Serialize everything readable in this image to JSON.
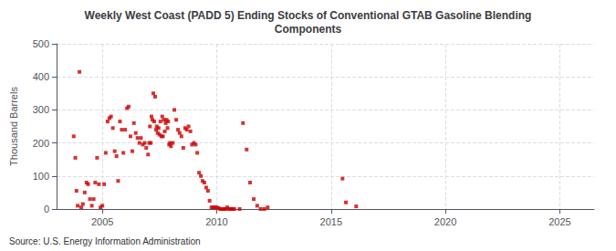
{
  "chart_data": {
    "type": "scatter",
    "title": "Weekly West Coast (PADD 5) Ending Stocks of Conventional GTAB Gasoline Blending\nComponents",
    "ylabel": "Thousand Barrels",
    "source": "Source: U.S. Energy Information Administration",
    "color": "#cc0000",
    "marker": "square",
    "grid": true,
    "xlim": [
      2003.0,
      2026.5
    ],
    "ylim": [
      0,
      500
    ],
    "xticks": [
      2005,
      2010,
      2015,
      2020,
      2025
    ],
    "yticks": [
      0,
      100,
      200,
      300,
      400,
      500
    ],
    "x": [
      2003.75,
      2003.82,
      2003.87,
      2003.92,
      2004.0,
      2004.08,
      2004.15,
      2004.23,
      2004.31,
      2004.38,
      2004.46,
      2004.54,
      2004.62,
      2004.69,
      2004.77,
      2004.85,
      2004.92,
      2005.0,
      2005.08,
      2005.15,
      2005.23,
      2005.31,
      2005.38,
      2005.46,
      2005.54,
      2005.62,
      2005.69,
      2005.77,
      2005.85,
      2005.92,
      2006.0,
      2006.08,
      2006.15,
      2006.23,
      2006.31,
      2006.38,
      2006.46,
      2006.54,
      2006.62,
      2006.69,
      2006.77,
      2006.85,
      2006.92,
      2007.0,
      2007.08,
      2007.15,
      2007.23,
      2007.31,
      2007.38,
      2007.46,
      2007.54,
      2007.62,
      2007.69,
      2007.77,
      2007.85,
      2007.92,
      2007.05,
      2007.12,
      2007.19,
      2007.27,
      2007.35,
      2007.42,
      2007.5,
      2007.58,
      2007.65,
      2007.73,
      2007.81,
      2007.88,
      2007.96,
      2008.0,
      2008.08,
      2008.15,
      2008.23,
      2008.31,
      2008.38,
      2008.46,
      2008.54,
      2008.62,
      2008.69,
      2008.77,
      2008.85,
      2008.92,
      2009.0,
      2009.08,
      2009.15,
      2009.23,
      2009.31,
      2009.38,
      2009.46,
      2009.54,
      2009.62,
      2009.69,
      2009.77,
      2009.85,
      2009.92,
      2010.0,
      2010.08,
      2010.15,
      2010.23,
      2010.31,
      2010.38,
      2010.46,
      2010.54,
      2010.62,
      2010.69,
      2010.77,
      2011.0,
      2011.15,
      2011.31,
      2011.46,
      2011.62,
      2011.77,
      2011.92,
      2012.08,
      2012.23,
      2015.5,
      2015.65,
      2016.1
    ],
    "values": [
      220,
      155,
      55,
      10,
      415,
      5,
      15,
      50,
      80,
      75,
      30,
      10,
      30,
      80,
      155,
      75,
      5,
      10,
      75,
      170,
      265,
      275,
      280,
      245,
      175,
      160,
      85,
      265,
      240,
      170,
      240,
      305,
      310,
      220,
      175,
      260,
      230,
      215,
      200,
      215,
      195,
      200,
      185,
      165,
      250,
      280,
      350,
      340,
      250,
      245,
      265,
      280,
      270,
      260,
      245,
      195,
      200,
      200,
      270,
      265,
      240,
      230,
      225,
      220,
      220,
      235,
      270,
      265,
      200,
      190,
      200,
      300,
      270,
      240,
      230,
      220,
      185,
      245,
      240,
      250,
      235,
      195,
      200,
      195,
      170,
      110,
      100,
      85,
      80,
      65,
      55,
      25,
      5,
      5,
      5,
      5,
      3,
      0,
      0,
      0,
      0,
      5,
      0,
      0,
      0,
      0,
      0,
      260,
      180,
      80,
      30,
      10,
      0,
      0,
      5,
      92,
      20,
      8
    ]
  }
}
